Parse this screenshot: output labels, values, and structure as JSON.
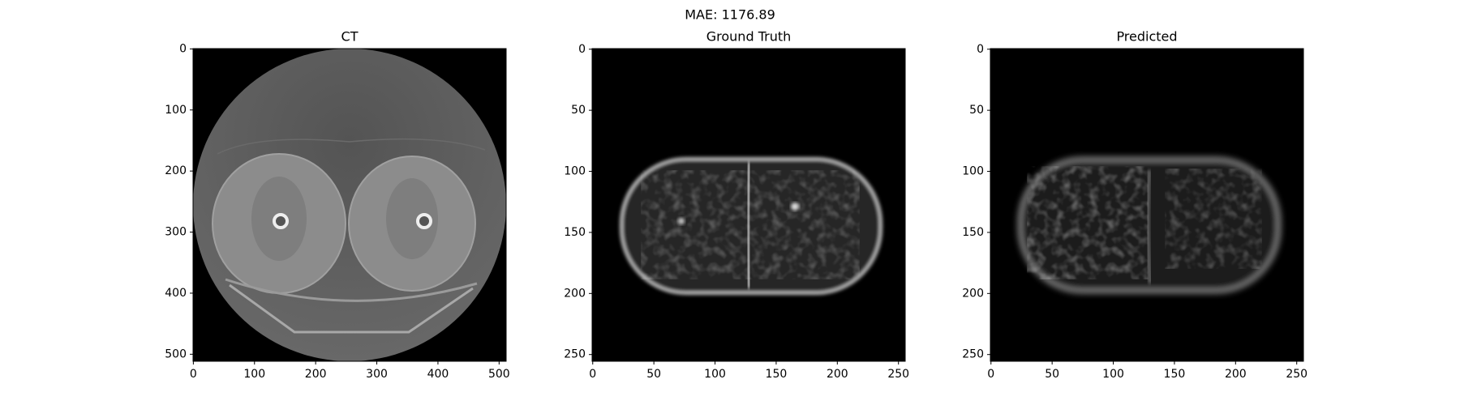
{
  "title": "MAE: 1176.89",
  "chart_data": [
    {
      "type": "image",
      "title": "CT",
      "xlim": [
        -0.5,
        511.5
      ],
      "ylim": [
        511.5,
        -0.5
      ],
      "xticks": [
        0,
        100,
        200,
        300,
        400,
        500
      ],
      "yticks": [
        0,
        100,
        200,
        300,
        400,
        500
      ]
    },
    {
      "type": "image",
      "title": "Ground Truth",
      "xlim": [
        -0.5,
        255.5
      ],
      "ylim": [
        255.5,
        -0.5
      ],
      "xticks": [
        0,
        50,
        100,
        150,
        200,
        250
      ],
      "yticks": [
        0,
        50,
        100,
        150,
        200,
        250
      ]
    },
    {
      "type": "image",
      "title": "Predicted",
      "xlim": [
        -0.5,
        255.5
      ],
      "ylim": [
        255.5,
        -0.5
      ],
      "xticks": [
        0,
        50,
        100,
        150,
        200,
        250
      ],
      "yticks": [
        0,
        50,
        100,
        150,
        200,
        250
      ]
    }
  ]
}
